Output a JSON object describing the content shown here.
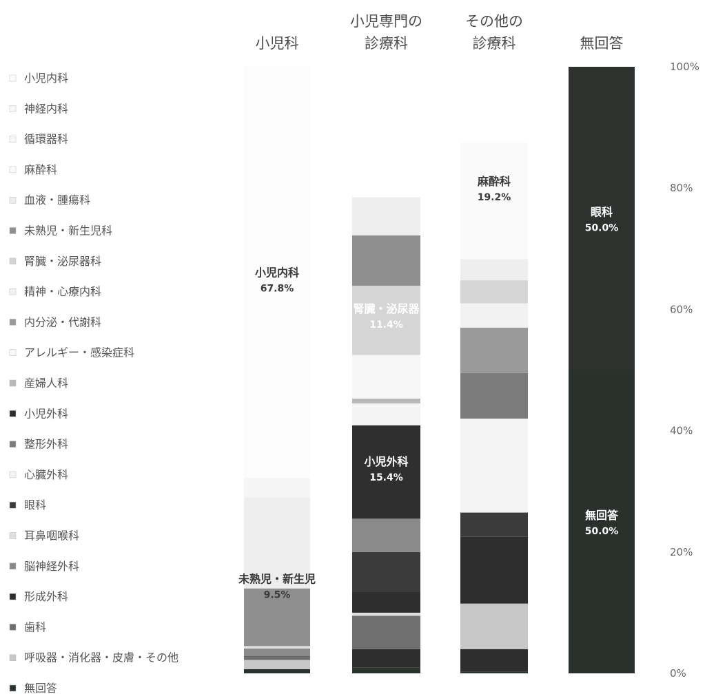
{
  "chart_data": {
    "type": "bar",
    "stacked": true,
    "categories": [
      "小児科",
      "小児専門の\n診療科",
      "その他の\n診療科",
      "無回答"
    ],
    "yaxis": {
      "min": 0,
      "max": 100,
      "ticks": [
        "0%",
        "20%",
        "40%",
        "60%",
        "80%",
        "100%"
      ]
    },
    "legend_order_bottom_to_top": [
      "無回答",
      "呼吸器・消化器・皮膚・その他",
      "歯科",
      "形成外科",
      "脳神経外科",
      "耳鼻咽喉科",
      "眼科",
      "心臓外科",
      "整形外科",
      "小児外科",
      "産婦人科",
      "アレルギー・感染症科",
      "内分泌・代謝科",
      "精神・心療内科",
      "腎臓・泌尿器科",
      "未熟児・新生児科",
      "血液・腫瘍科",
      "麻酔科",
      "循環器科",
      "神経内科",
      "小児内科"
    ],
    "colors": {
      "無回答": "#2b332e",
      "呼吸器・消化器・皮膚・その他": "#c8c8c8",
      "歯科": "#6f6f6f",
      "形成外科": "#2e2e2e",
      "脳神経外科": "#8a8a8a",
      "耳鼻咽喉科": "#e0e0e0",
      "眼科": "#3b3b3b",
      "心臓外科": "#f4f4f4",
      "整形外科": "#7c7c7c",
      "小児外科": "#2f2f2f",
      "産婦人科": "#b8b8b8",
      "アレルギー・感染症科": "#f7f7f7",
      "内分泌・代謝科": "#9a9a9a",
      "精神・心療内科": "#f2f2f2",
      "腎臓・泌尿器科": "#d5d5d5",
      "未熟児・新生児科": "#8f8f8f",
      "血液・腫瘍科": "#eeeeee",
      "麻酔科": "#fafafa",
      "循環器科": "#f6f6f6",
      "神経内科": "#f8f8f8",
      "小児内科": "#fcfcfc"
    },
    "series": [
      {
        "name": "小児科",
        "segments": [
          {
            "label": "無回答",
            "value": 0.7
          },
          {
            "label": "呼吸器・消化器・皮膚・その他",
            "value": 1.5
          },
          {
            "label": "歯科",
            "value": 0.5
          },
          {
            "label": "形成外科",
            "value": 0.1
          },
          {
            "label": "脳神経外科",
            "value": 1.3
          },
          {
            "label": "耳鼻咽喉科",
            "value": 0.4
          },
          {
            "label": "未熟児・新生児科",
            "value": 9.5
          },
          {
            "label": "血液・腫瘍科",
            "value": 15.0
          },
          {
            "label": "その他",
            "value": 3.2
          },
          {
            "label": "小児内科",
            "value": 67.8
          }
        ]
      },
      {
        "name": "小児専門の診療科",
        "segments": [
          {
            "label": "無回答",
            "value": 1.0
          },
          {
            "label": "形成外科",
            "value": 3.0
          },
          {
            "label": "歯科",
            "value": 5.5
          },
          {
            "label": "耳鼻咽喉科",
            "value": 0.5
          },
          {
            "label": "形成外科",
            "value": 3.5
          },
          {
            "label": "眼科",
            "value": 6.5
          },
          {
            "label": "脳神経外科",
            "value": 5.5
          },
          {
            "label": "小児外科",
            "value": 15.4
          },
          {
            "label": "心臓外科",
            "value": 3.6
          },
          {
            "label": "産婦人科",
            "value": 0.8
          },
          {
            "label": "アレルギー・感染症科",
            "value": 7.2
          },
          {
            "label": "腎臓・泌尿器科",
            "value": 11.4
          },
          {
            "label": "未熟児・新生児科",
            "value": 8.3
          },
          {
            "label": "血液・腫瘍科",
            "value": 6.3
          },
          {
            "label": "空白",
            "value": 21.5
          }
        ]
      },
      {
        "name": "その他の診療科",
        "segments": [
          {
            "label": "無回答",
            "value": 0.3
          },
          {
            "label": "形成外科",
            "value": 3.7
          },
          {
            "label": "呼吸器・消化器・皮膚・その他",
            "value": 7.5
          },
          {
            "label": "形成外科",
            "value": 11.0
          },
          {
            "label": "眼科",
            "value": 4.0
          },
          {
            "label": "心臓外科",
            "value": 15.5
          },
          {
            "label": "整形外科",
            "value": 7.5
          },
          {
            "label": "内分泌・代謝科",
            "value": 7.5
          },
          {
            "label": "精神・心療内科",
            "value": 4.0
          },
          {
            "label": "腎臓・泌尿器科",
            "value": 3.8
          },
          {
            "label": "血液・腫瘍科",
            "value": 3.5
          },
          {
            "label": "麻酔科",
            "value": 19.2
          },
          {
            "label": "空白",
            "value": 12.5
          }
        ]
      },
      {
        "name": "無回答",
        "segments": [
          {
            "label": "無回答",
            "value": 50.0
          },
          {
            "label": "眼科",
            "value": 50.0
          }
        ]
      }
    ],
    "annotations": [
      {
        "column": 0,
        "name": "未熟児・新生児",
        "value": "9.5%",
        "color": "#3a3a3a",
        "at": 14.5
      },
      {
        "column": 0,
        "name": "小児内科",
        "value": "67.8%",
        "color": "#3a3a3a",
        "at": 65.0
      },
      {
        "column": 1,
        "name": "小児外科",
        "value": "15.4%",
        "color": "#ffffff",
        "at": 33.8
      },
      {
        "column": 1,
        "name": "腎臓・泌尿器",
        "value": "11.4%",
        "color": "#ffffff",
        "at": 59.0
      },
      {
        "column": 2,
        "name": "麻酔科",
        "value": "19.2%",
        "color": "#3a3a3a",
        "at": 80.0
      },
      {
        "column": 3,
        "name": "無回答",
        "value": "50.0%",
        "color": "#ffffff",
        "at": 25.0
      },
      {
        "column": 3,
        "name": "眼科",
        "value": "50.0%",
        "color": "#ffffff",
        "at": 75.0
      }
    ]
  },
  "legend_items": [
    {
      "label": "小児内科",
      "color": "#fcfcfc"
    },
    {
      "label": "神経内科",
      "color": "#f8f8f8"
    },
    {
      "label": "循環器科",
      "color": "#f6f6f6"
    },
    {
      "label": "麻酔科",
      "color": "#fafafa"
    },
    {
      "label": "血液・腫瘍科",
      "color": "#eeeeee"
    },
    {
      "label": "未熟児・新生児科",
      "color": "#8f8f8f"
    },
    {
      "label": "腎臓・泌尿器科",
      "color": "#d5d5d5"
    },
    {
      "label": "精神・心療内科",
      "color": "#f2f2f2"
    },
    {
      "label": "内分泌・代謝科",
      "color": "#9a9a9a"
    },
    {
      "label": "アレルギー・感染症科",
      "color": "#f7f7f7"
    },
    {
      "label": "産婦人科",
      "color": "#b8b8b8"
    },
    {
      "label": "小児外科",
      "color": "#2f2f2f"
    },
    {
      "label": "整形外科",
      "color": "#7c7c7c"
    },
    {
      "label": "心臓外科",
      "color": "#f4f4f4"
    },
    {
      "label": "眼科",
      "color": "#3b3b3b"
    },
    {
      "label": "耳鼻咽喉科",
      "color": "#e0e0e0"
    },
    {
      "label": "脳神経外科",
      "color": "#8a8a8a"
    },
    {
      "label": "形成外科",
      "color": "#2e2e2e"
    },
    {
      "label": "歯科",
      "color": "#6f6f6f"
    },
    {
      "label": "呼吸器・消化器・皮膚・その他",
      "color": "#c8c8c8"
    },
    {
      "label": "無回答",
      "color": "#2b332e"
    }
  ]
}
